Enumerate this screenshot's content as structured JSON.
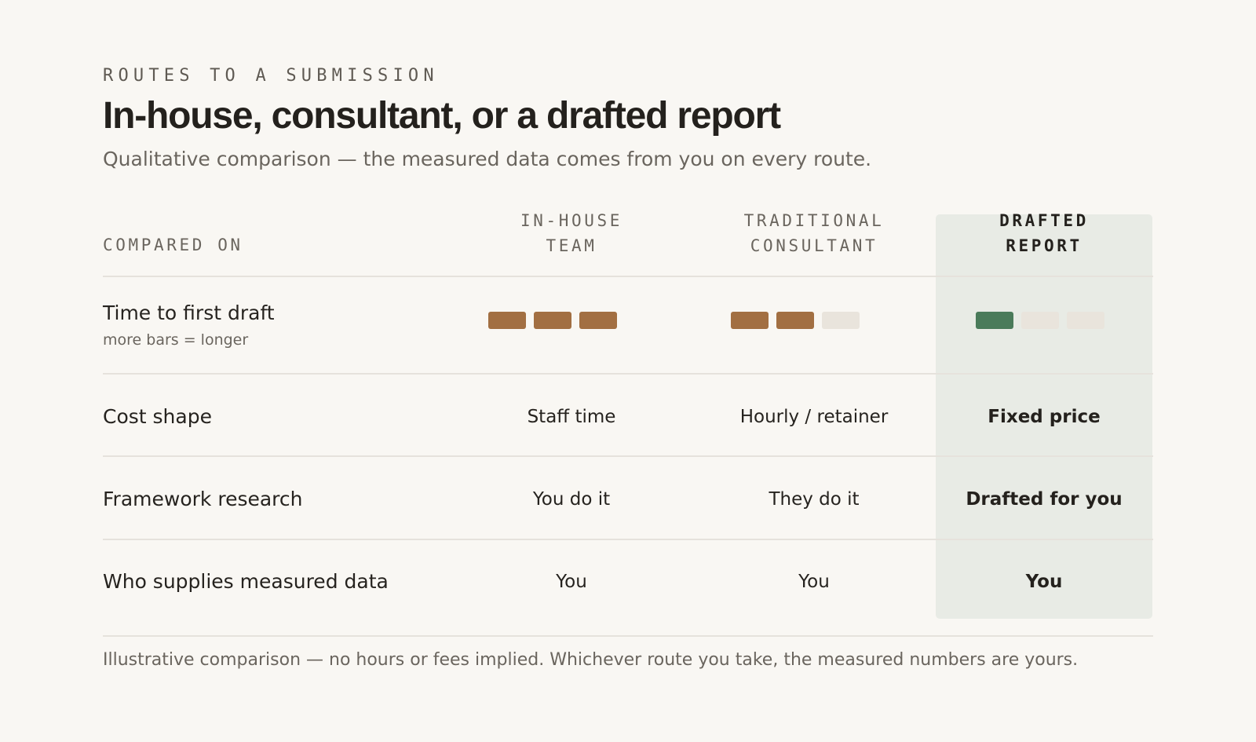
{
  "header": {
    "eyebrow": "ROUTES TO A SUBMISSION",
    "title": "In-house, consultant, or a drafted report",
    "subtitle": "Qualitative comparison — the measured data comes from you on every route."
  },
  "table": {
    "compared_on_label": "COMPARED ON",
    "columns": [
      {
        "line1": "IN-HOUSE",
        "line2": "TEAM"
      },
      {
        "line1": "TRADITIONAL",
        "line2": "CONSULTANT"
      },
      {
        "line1": "DRAFTED",
        "line2": "REPORT",
        "highlighted": true
      }
    ],
    "rows": [
      {
        "label": "Time to first draft",
        "note": "more bars = longer",
        "bars": [
          3,
          2,
          1
        ],
        "bar_max": 3
      },
      {
        "label": "Cost shape",
        "values": [
          "Staff time",
          "Hourly / retainer",
          "Fixed price"
        ]
      },
      {
        "label": "Framework research",
        "values": [
          "You do it",
          "They do it",
          "Drafted for you"
        ]
      },
      {
        "label": "Who supplies measured data",
        "values": [
          "You",
          "You",
          "You"
        ]
      }
    ]
  },
  "footnote": "Illustrative comparison — no hours or fees implied. Whichever route you take, the measured numbers are yours.",
  "colors": {
    "background": "#f9f7f3",
    "highlight_column": "#e8ebe5",
    "bar_filled": "#a26f42",
    "bar_filled_highlight": "#4a7b5a",
    "bar_empty": "#e9e4dc"
  }
}
